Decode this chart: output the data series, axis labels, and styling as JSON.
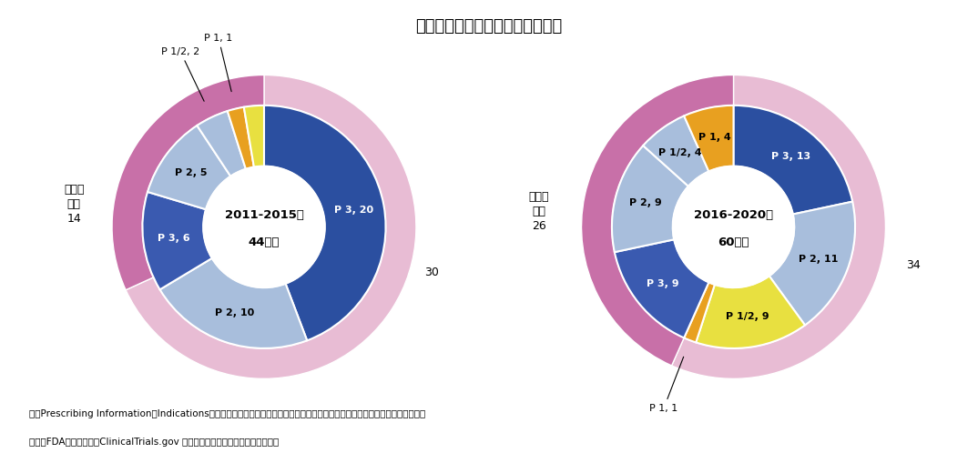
{
  "title": "図３　抗悪性腫瘍剤の個別化医療",
  "title_fontsize": 13,
  "background_color": "#ffffff",
  "note_line1": "注：Prescribing InformationのIndicationsの中で標的分子もしくは遺伝子変異により層別化する品目を個別化医療品目とした。",
  "note_line2": "出所：FDAの公開情報、ClinicalTrials.gov をもとに医薬産業政策研究所にて作成",
  "chart1": {
    "center_line1": "2011-2015年",
    "center_line2": "44品目",
    "pers_val": 14,
    "rest_val": 30,
    "outer_color_rest": "#e8bcd4",
    "outer_color_pers": "#c870a8",
    "inner_segments_ordered": [
      {
        "value": 20,
        "color": "#2b4fa0",
        "label": "P 3, 20",
        "label_color": "white",
        "outside": false
      },
      {
        "value": 10,
        "color": "#a8bedc",
        "label": "P 2, 10",
        "label_color": "black",
        "outside": false
      },
      {
        "value": 6,
        "color": "#3a5ab0",
        "label": "P 3, 6",
        "label_color": "white",
        "outside": false
      },
      {
        "value": 5,
        "color": "#a8bedc",
        "label": "P 2, 5",
        "label_color": "black",
        "outside": false
      },
      {
        "value": 2,
        "color": "#a8bedc",
        "label": "P 1/2, 2",
        "label_color": "black",
        "outside": true
      },
      {
        "value": 1,
        "color": "#e8a020",
        "label": "P 1, 1",
        "label_color": "black",
        "outside": true
      },
      {
        "value": 1.2,
        "color": "#e8e040",
        "label": "",
        "label_color": "black",
        "outside": false
      }
    ]
  },
  "chart2": {
    "center_line1": "2016-2020年",
    "center_line2": "60品目",
    "pers_val": 26,
    "rest_val": 34,
    "outer_color_rest": "#e8bcd4",
    "outer_color_pers": "#c870a8",
    "inner_segments_ordered": [
      {
        "value": 13,
        "color": "#2b4fa0",
        "label": "P 3, 13",
        "label_color": "white",
        "outside": false
      },
      {
        "value": 11,
        "color": "#a8bedc",
        "label": "P 2, 11",
        "label_color": "black",
        "outside": false
      },
      {
        "value": 9,
        "color": "#e8e040",
        "label": "P 1/2, 9",
        "label_color": "black",
        "outside": false
      },
      {
        "value": 1,
        "color": "#e8a020",
        "label": "P 1, 1",
        "label_color": "black",
        "outside": true
      },
      {
        "value": 9,
        "color": "#3a5ab0",
        "label": "P 3, 9",
        "label_color": "white",
        "outside": false
      },
      {
        "value": 9,
        "color": "#a8bedc",
        "label": "P 2, 9",
        "label_color": "black",
        "outside": false
      },
      {
        "value": 4,
        "color": "#a8bedc",
        "label": "P 1/2, 4",
        "label_color": "black",
        "outside": false
      },
      {
        "value": 4,
        "color": "#e8a020",
        "label": "P 1, 4",
        "label_color": "black",
        "outside": false
      }
    ]
  }
}
